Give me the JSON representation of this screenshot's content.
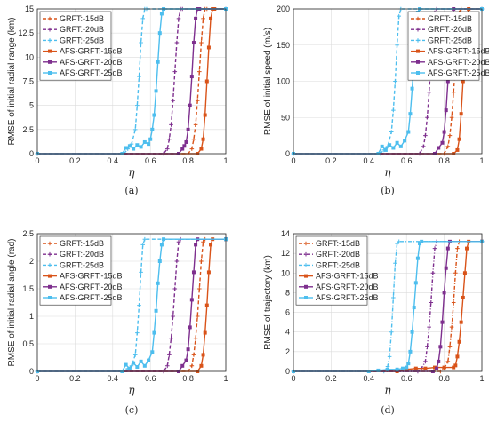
{
  "chart_data": [
    {
      "type": "line",
      "caption": "(a)",
      "xlabel": "η",
      "ylabel": "RMSE of initial radial range (km)",
      "xlim": [
        0,
        1
      ],
      "ylim": [
        0,
        15
      ],
      "xticks": [
        0,
        0.2,
        0.4,
        0.6,
        0.8,
        1
      ],
      "xtick_labels": [
        "0",
        "0.2",
        "0.4",
        "0.6",
        "0.8",
        "1"
      ],
      "yticks": [
        0,
        2.5,
        5,
        7.5,
        10,
        12.5,
        15
      ],
      "ytick_labels": [
        "0",
        "2.5",
        "5",
        "7.5",
        "10",
        "12.5",
        "15"
      ],
      "grid": true,
      "legend_position": "top-left",
      "series": [
        {
          "name": "GRFT:-15dB",
          "color": "#D95319",
          "dash": "dashed",
          "marker": "plus",
          "x": [
            0,
            0.8,
            0.82,
            0.83,
            0.84,
            0.85,
            0.86,
            0.87,
            0.88,
            0.89,
            0.9,
            1
          ],
          "y": [
            0,
            0,
            0.5,
            1.5,
            3,
            5.5,
            8.5,
            11.5,
            14,
            15,
            15,
            15
          ]
        },
        {
          "name": "GRFT:-20dB",
          "color": "#7E2F8E",
          "dash": "dashed",
          "marker": "plus",
          "x": [
            0,
            0.67,
            0.69,
            0.7,
            0.71,
            0.72,
            0.73,
            0.74,
            0.75,
            0.76,
            0.77,
            1
          ],
          "y": [
            0,
            0,
            0.5,
            1.5,
            3,
            5.5,
            8.5,
            11.5,
            14,
            15,
            15,
            15
          ]
        },
        {
          "name": "GRFT:-25dB",
          "color": "#4DBEEE",
          "dash": "dashed",
          "marker": "plus",
          "x": [
            0,
            0.46,
            0.48,
            0.5,
            0.52,
            0.53,
            0.54,
            0.55,
            0.56,
            0.57,
            0.58,
            1
          ],
          "y": [
            0,
            0,
            0.5,
            1,
            2.5,
            5,
            8,
            11.5,
            14,
            15,
            15,
            15
          ]
        },
        {
          "name": "AFS-GRFT:-15dB",
          "color": "#D95319",
          "dash": "solid",
          "marker": "square",
          "x": [
            0,
            0.85,
            0.87,
            0.88,
            0.89,
            0.9,
            0.91,
            0.92,
            0.93,
            0.94,
            1
          ],
          "y": [
            0,
            0,
            0.5,
            1.5,
            4,
            7.5,
            11,
            14,
            15,
            15,
            15
          ]
        },
        {
          "name": "AFS-GRFT:-20dB",
          "color": "#7E2F8E",
          "dash": "solid",
          "marker": "square",
          "x": [
            0,
            0.75,
            0.77,
            0.78,
            0.79,
            0.8,
            0.81,
            0.82,
            0.83,
            0.84,
            0.85,
            0.86,
            1
          ],
          "y": [
            0,
            0,
            0.5,
            0.8,
            1.2,
            2.5,
            5,
            8,
            11.5,
            14,
            15,
            15,
            15
          ]
        },
        {
          "name": "AFS-GRFT:-25dB",
          "color": "#4DBEEE",
          "dash": "solid",
          "marker": "square",
          "x": [
            0,
            0.45,
            0.47,
            0.49,
            0.51,
            0.53,
            0.55,
            0.57,
            0.59,
            0.6,
            0.61,
            0.62,
            0.63,
            0.64,
            0.65,
            0.66,
            0.67,
            1
          ],
          "y": [
            0,
            0,
            0.6,
            0.8,
            0.5,
            0.9,
            0.7,
            1.2,
            1,
            1.5,
            2.5,
            4,
            6.5,
            9.5,
            12.5,
            14.5,
            15,
            15
          ]
        }
      ]
    },
    {
      "type": "line",
      "caption": "(b)",
      "xlabel": "η",
      "ylabel": "RMSE of initial speed (m/s)",
      "xlim": [
        0,
        1
      ],
      "ylim": [
        0,
        200
      ],
      "xticks": [
        0,
        0.2,
        0.4,
        0.6,
        0.8,
        1
      ],
      "xtick_labels": [
        "0",
        "0.2",
        "0.4",
        "0.6",
        "0.8",
        "1"
      ],
      "yticks": [
        0,
        50,
        100,
        150,
        200
      ],
      "ytick_labels": [
        "0",
        "50",
        "100",
        "150",
        "200"
      ],
      "grid": true,
      "legend_position": "top-right",
      "series": [
        {
          "name": "GRFT:-15dB",
          "color": "#D95319",
          "dash": "dashed",
          "marker": "plus",
          "x": [
            0,
            0.8,
            0.82,
            0.83,
            0.84,
            0.85,
            0.86,
            0.87,
            0.88,
            0.89,
            1
          ],
          "y": [
            0,
            0,
            10,
            25,
            50,
            85,
            125,
            165,
            195,
            200,
            200
          ]
        },
        {
          "name": "GRFT:-20dB",
          "color": "#7E2F8E",
          "dash": "dashed",
          "marker": "plus",
          "x": [
            0,
            0.67,
            0.69,
            0.7,
            0.71,
            0.72,
            0.73,
            0.74,
            0.75,
            0.76,
            1
          ],
          "y": [
            0,
            0,
            10,
            25,
            50,
            85,
            125,
            165,
            195,
            200,
            200
          ]
        },
        {
          "name": "GRFT:-25dB",
          "color": "#4DBEEE",
          "dash": "dashed",
          "marker": "plus",
          "x": [
            0,
            0.46,
            0.48,
            0.5,
            0.52,
            0.53,
            0.54,
            0.55,
            0.56,
            0.57,
            1
          ],
          "y": [
            0,
            0,
            5,
            10,
            30,
            60,
            100,
            150,
            190,
            200,
            200
          ]
        },
        {
          "name": "AFS-GRFT:-15dB",
          "color": "#D95319",
          "dash": "solid",
          "marker": "square",
          "x": [
            0,
            0.85,
            0.87,
            0.88,
            0.89,
            0.9,
            0.91,
            0.92,
            0.93,
            1
          ],
          "y": [
            0,
            0,
            5,
            20,
            55,
            100,
            150,
            190,
            200,
            200
          ]
        },
        {
          "name": "AFS-GRFT:-20dB",
          "color": "#7E2F8E",
          "dash": "solid",
          "marker": "square",
          "x": [
            0,
            0.75,
            0.77,
            0.79,
            0.8,
            0.81,
            0.82,
            0.83,
            0.84,
            0.85,
            1
          ],
          "y": [
            0,
            0,
            8,
            15,
            30,
            60,
            100,
            145,
            185,
            200,
            200
          ]
        },
        {
          "name": "AFS-GRFT:-25dB",
          "color": "#4DBEEE",
          "dash": "solid",
          "marker": "square",
          "x": [
            0,
            0.45,
            0.47,
            0.49,
            0.51,
            0.53,
            0.55,
            0.57,
            0.59,
            0.61,
            0.62,
            0.63,
            0.64,
            0.65,
            0.66,
            0.67,
            1
          ],
          "y": [
            0,
            0,
            10,
            5,
            12,
            8,
            15,
            10,
            18,
            30,
            55,
            90,
            130,
            170,
            195,
            200,
            200
          ]
        }
      ]
    },
    {
      "type": "line",
      "caption": "(c)",
      "xlabel": "η",
      "ylabel": "RMSE of initial radial angle (rad)",
      "xlim": [
        0,
        1
      ],
      "ylim": [
        0,
        2.5
      ],
      "xticks": [
        0,
        0.2,
        0.4,
        0.6,
        0.8,
        1
      ],
      "xtick_labels": [
        "0",
        "0.2",
        "0.4",
        "0.6",
        "0.8",
        "1"
      ],
      "yticks": [
        0,
        0.5,
        1,
        1.5,
        2,
        2.5
      ],
      "ytick_labels": [
        "0",
        "0.5",
        "1",
        "1.5",
        "2",
        "2.5"
      ],
      "grid": true,
      "legend_position": "top-left",
      "series": [
        {
          "name": "GRFT:-15dB",
          "color": "#D95319",
          "dash": "dashed",
          "marker": "plus",
          "x": [
            0,
            0.8,
            0.82,
            0.83,
            0.84,
            0.85,
            0.86,
            0.87,
            0.88,
            0.89,
            1
          ],
          "y": [
            0,
            0,
            0.1,
            0.3,
            0.6,
            1,
            1.5,
            2,
            2.35,
            2.4,
            2.4
          ]
        },
        {
          "name": "GRFT:-20dB",
          "color": "#7E2F8E",
          "dash": "dashed",
          "marker": "plus",
          "x": [
            0,
            0.67,
            0.69,
            0.7,
            0.71,
            0.72,
            0.73,
            0.74,
            0.75,
            0.76,
            1
          ],
          "y": [
            0,
            0,
            0.1,
            0.3,
            0.6,
            1,
            1.5,
            2,
            2.35,
            2.4,
            2.4
          ]
        },
        {
          "name": "GRFT:-25dB",
          "color": "#4DBEEE",
          "dash": "dashed",
          "marker": "plus",
          "x": [
            0,
            0.46,
            0.48,
            0.5,
            0.52,
            0.53,
            0.54,
            0.55,
            0.56,
            0.57,
            1
          ],
          "y": [
            0,
            0,
            0.05,
            0.1,
            0.3,
            0.7,
            1.2,
            1.8,
            2.3,
            2.4,
            2.4
          ]
        },
        {
          "name": "AFS-GRFT:-15dB",
          "color": "#D95319",
          "dash": "solid",
          "marker": "square",
          "x": [
            0,
            0.85,
            0.87,
            0.88,
            0.89,
            0.9,
            0.91,
            0.92,
            0.93,
            1
          ],
          "y": [
            0,
            0,
            0.1,
            0.3,
            0.7,
            1.2,
            1.8,
            2.3,
            2.4,
            2.4
          ]
        },
        {
          "name": "AFS-GRFT:-20dB",
          "color": "#7E2F8E",
          "dash": "solid",
          "marker": "square",
          "x": [
            0,
            0.75,
            0.77,
            0.79,
            0.8,
            0.81,
            0.82,
            0.83,
            0.84,
            0.85,
            1
          ],
          "y": [
            0,
            0,
            0.1,
            0.2,
            0.4,
            0.8,
            1.3,
            1.8,
            2.3,
            2.4,
            2.4
          ]
        },
        {
          "name": "AFS-GRFT:-25dB",
          "color": "#4DBEEE",
          "dash": "solid",
          "marker": "square",
          "x": [
            0,
            0.45,
            0.47,
            0.49,
            0.51,
            0.53,
            0.55,
            0.57,
            0.59,
            0.61,
            0.62,
            0.63,
            0.64,
            0.65,
            0.66,
            0.67,
            1
          ],
          "y": [
            0,
            0,
            0.12,
            0.05,
            0.15,
            0.08,
            0.18,
            0.1,
            0.2,
            0.35,
            0.7,
            1.1,
            1.6,
            2,
            2.3,
            2.4,
            2.4
          ]
        }
      ]
    },
    {
      "type": "line",
      "caption": "(d)",
      "xlabel": "η",
      "ylabel": "RMSE of trajectory (km)",
      "xlim": [
        0,
        1
      ],
      "ylim": [
        0,
        14
      ],
      "xticks": [
        0,
        0.2,
        0.4,
        0.6,
        0.8,
        1
      ],
      "xtick_labels": [
        "0",
        "0.2",
        "0.4",
        "0.6",
        "0.8",
        "1"
      ],
      "yticks": [
        0,
        2,
        4,
        6,
        8,
        10,
        12,
        14
      ],
      "ytick_labels": [
        "0",
        "2",
        "4",
        "6",
        "8",
        "10",
        "12",
        "14"
      ],
      "grid": true,
      "legend_position": "top-left",
      "series": [
        {
          "name": "GRFT:-15dB",
          "color": "#D95319",
          "dash": "dashdot",
          "marker": "plus",
          "x": [
            0,
            0.78,
            0.8,
            0.82,
            0.83,
            0.84,
            0.85,
            0.86,
            0.87,
            0.88,
            1
          ],
          "y": [
            0,
            0,
            0.3,
            1,
            2.5,
            4.5,
            7,
            10,
            12.5,
            13.2,
            13.2
          ]
        },
        {
          "name": "GRFT:-20dB",
          "color": "#7E2F8E",
          "dash": "dashdot",
          "marker": "plus",
          "x": [
            0,
            0.66,
            0.68,
            0.7,
            0.71,
            0.72,
            0.73,
            0.74,
            0.75,
            0.76,
            1
          ],
          "y": [
            0,
            0,
            0.3,
            1,
            2.5,
            4.5,
            7,
            10,
            12.5,
            13.2,
            13.2
          ]
        },
        {
          "name": "GRFT:-25dB",
          "color": "#4DBEEE",
          "dash": "dashdot",
          "marker": "plus",
          "x": [
            0,
            0.48,
            0.5,
            0.51,
            0.52,
            0.53,
            0.54,
            0.55,
            0.56,
            1
          ],
          "y": [
            0,
            0,
            0.5,
            1.5,
            4,
            7.5,
            11,
            13,
            13.2,
            13.2
          ]
        },
        {
          "name": "AFS-GRFT:-15dB",
          "color": "#D95319",
          "dash": "solid",
          "marker": "square",
          "x": [
            0,
            0.55,
            0.6,
            0.65,
            0.7,
            0.75,
            0.8,
            0.85,
            0.86,
            0.87,
            0.88,
            0.89,
            0.9,
            0.91,
            0.92,
            0.93,
            1
          ],
          "y": [
            0,
            0,
            0.2,
            0.3,
            0.3,
            0.4,
            0.4,
            0.4,
            0.6,
            1.5,
            3,
            5,
            7.5,
            10,
            12.5,
            13.2,
            13.2
          ]
        },
        {
          "name": "AFS-GRFT:-20dB",
          "color": "#7E2F8E",
          "dash": "solid",
          "marker": "square",
          "x": [
            0,
            0.74,
            0.76,
            0.77,
            0.78,
            0.79,
            0.8,
            0.81,
            0.82,
            0.83,
            1
          ],
          "y": [
            0,
            0,
            0.3,
            1,
            2.5,
            5,
            8,
            10.5,
            12.5,
            13.2,
            13.2
          ]
        },
        {
          "name": "AFS-GRFT:-25dB",
          "color": "#4DBEEE",
          "dash": "solid",
          "marker": "square",
          "x": [
            0,
            0.4,
            0.45,
            0.5,
            0.55,
            0.58,
            0.6,
            0.61,
            0.62,
            0.63,
            0.64,
            0.65,
            0.66,
            0.67,
            0.68,
            1
          ],
          "y": [
            0,
            0,
            0.1,
            0.2,
            0.2,
            0.3,
            0.4,
            0.8,
            2,
            4,
            6.5,
            9,
            11.5,
            13,
            13.2,
            13.2
          ]
        }
      ]
    }
  ]
}
